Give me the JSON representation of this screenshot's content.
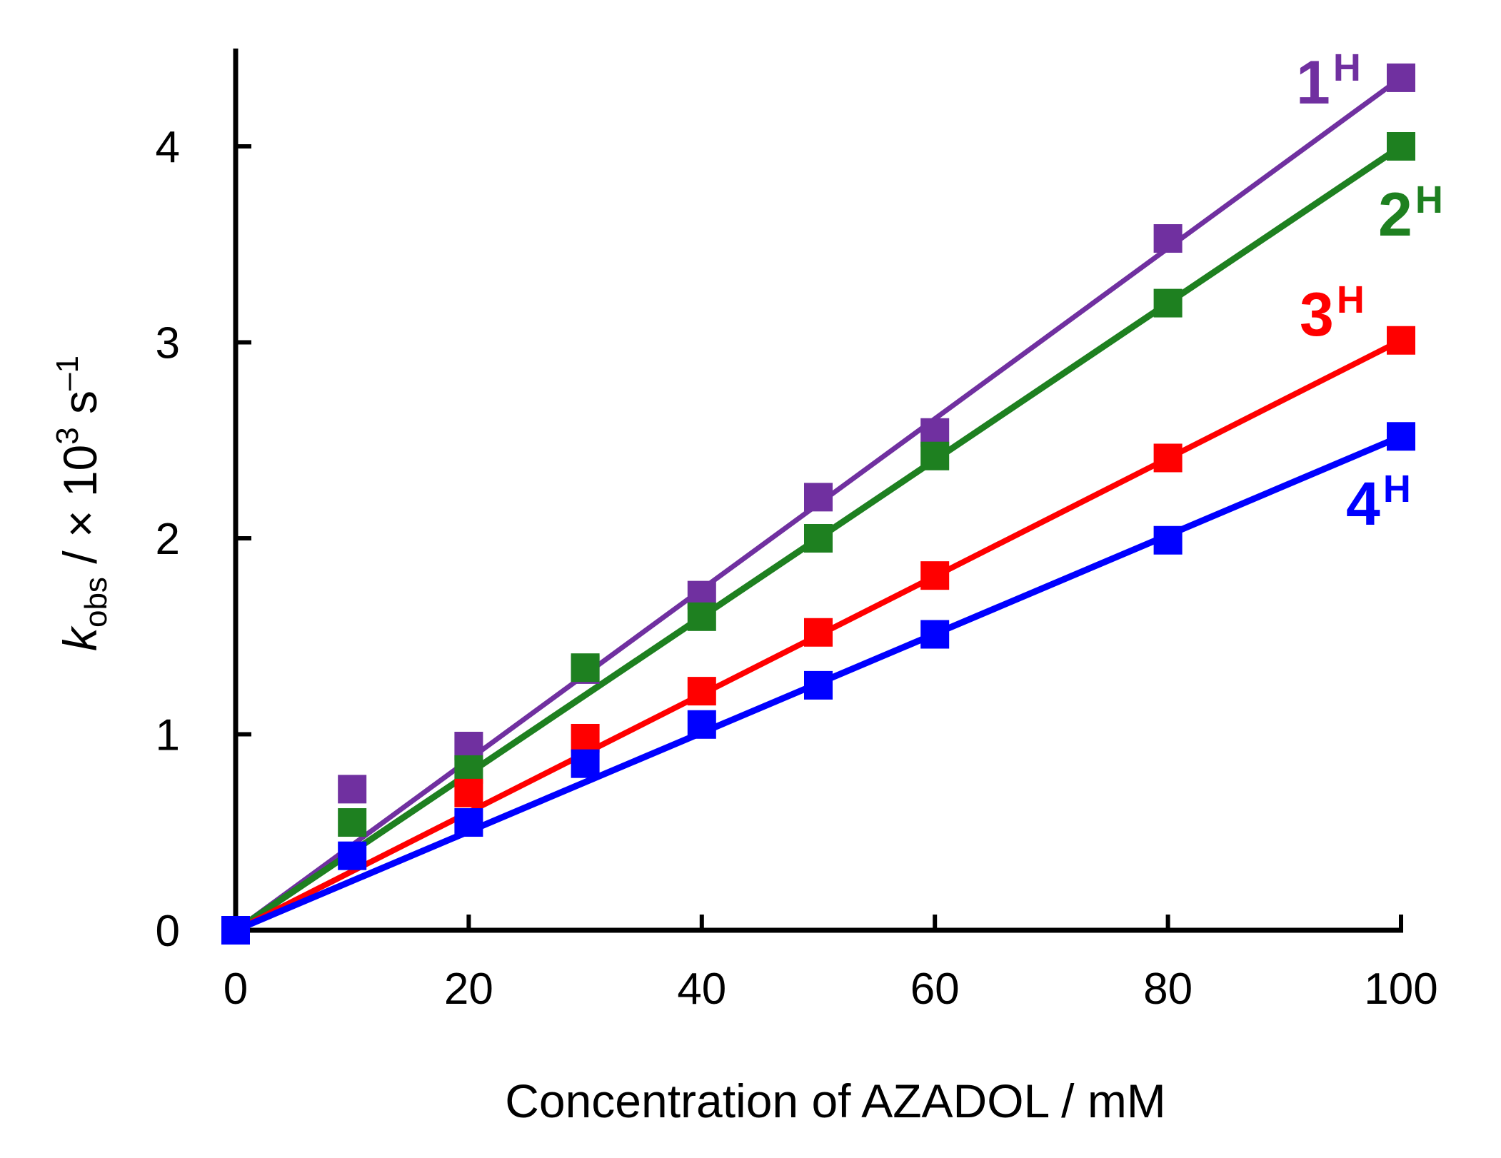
{
  "chart_data": {
    "type": "scatter",
    "title": "",
    "xlabel": "Concentration of AZADOL / mM",
    "ylabel": {
      "k": "k",
      "sub": "obs",
      "mid": " / × 10",
      "exp": "3",
      "unit": " s",
      "unit_exp": "–1"
    },
    "xlim": [
      0,
      100
    ],
    "ylim": [
      0,
      4.5
    ],
    "xticks": [
      0,
      20,
      40,
      60,
      80,
      100
    ],
    "xtick_labels": [
      "0",
      "20",
      "40",
      "60",
      "80",
      "100"
    ],
    "yticks": [
      0,
      1,
      2,
      3,
      4
    ],
    "ytick_labels": [
      "0",
      "1",
      "2",
      "3",
      "4"
    ],
    "grid": false,
    "legend": "inline labels at line ends",
    "series": [
      {
        "label": "1",
        "label_sup": "H",
        "color": "#7030a0",
        "x": [
          0,
          10,
          20,
          30,
          40,
          50,
          60,
          80,
          100
        ],
        "y": [
          0,
          0.72,
          0.94,
          1.33,
          1.71,
          2.21,
          2.54,
          3.53,
          4.35
        ],
        "fit_slope": 0.0435
      },
      {
        "label": "2",
        "label_sup": "H",
        "color": "#1e8020",
        "x": [
          0,
          10,
          20,
          30,
          40,
          50,
          60,
          80,
          100
        ],
        "y": [
          0,
          0.55,
          0.82,
          1.34,
          1.6,
          2.0,
          2.42,
          3.2,
          4.0
        ],
        "fit_slope": 0.04
      },
      {
        "label": "3",
        "label_sup": "H",
        "color": "#ff0000",
        "x": [
          0,
          20,
          30,
          40,
          50,
          60,
          80,
          100
        ],
        "y": [
          0,
          0.7,
          0.98,
          1.22,
          1.52,
          1.81,
          2.41,
          3.01
        ],
        "fit_slope": 0.0301
      },
      {
        "label": "4",
        "label_sup": "H",
        "color": "#0000ff",
        "x": [
          0,
          10,
          20,
          30,
          40,
          50,
          60,
          80,
          100
        ],
        "y": [
          0,
          0.38,
          0.55,
          0.85,
          1.05,
          1.25,
          1.51,
          1.99,
          2.52
        ],
        "fit_slope": 0.0252
      }
    ]
  }
}
